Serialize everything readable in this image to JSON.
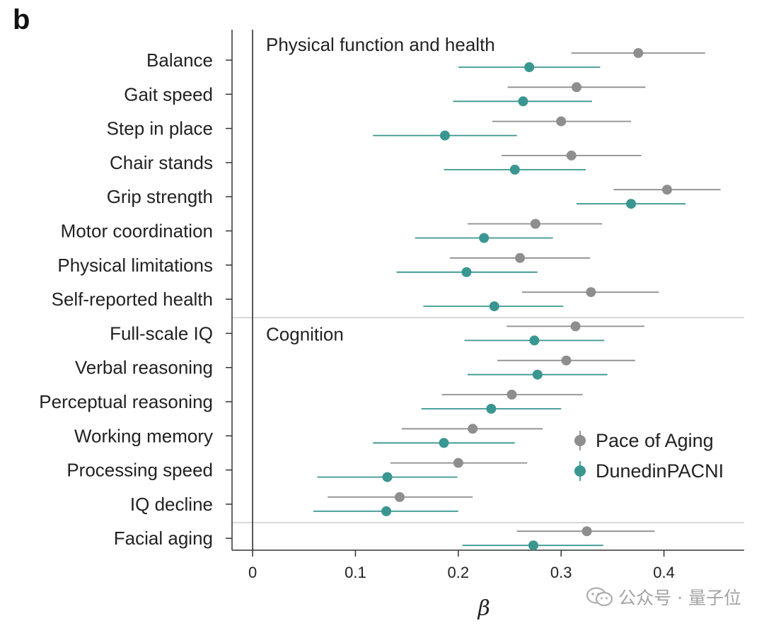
{
  "panel_label": "b",
  "watermark": {
    "text": "公众号 · 量子位",
    "icon": "wechat-icon"
  },
  "colors": {
    "pace_of_aging": "#8e8e8e",
    "dunedin_pacni": "#3a9690",
    "axis": "#333333",
    "separator": "#cccccc"
  },
  "chart_data": {
    "type": "forest",
    "xlabel": "β",
    "xlim": [
      -0.02,
      0.478
    ],
    "xticks": [
      0,
      0.1,
      0.2,
      0.3,
      0.4
    ],
    "xtick_labels": [
      "0",
      "0.1",
      "0.2",
      "0.3",
      "0.4"
    ],
    "sections": [
      {
        "name": "Physical function and health",
        "first_index": 0
      },
      {
        "name": "Cognition",
        "first_index": 8
      }
    ],
    "separators_after_index": [
      7,
      13
    ],
    "legend": [
      {
        "name": "Pace of Aging",
        "color_key": "pace_of_aging"
      },
      {
        "name": "DunedinPACNI",
        "color_key": "dunedin_pacni"
      }
    ],
    "categories": [
      "Balance",
      "Gait speed",
      "Step in place",
      "Chair stands",
      "Grip strength",
      "Motor coordination",
      "Physical limitations",
      "Self-reported health",
      "Full-scale IQ",
      "Verbal reasoning",
      "Perceptual reasoning",
      "Working memory",
      "Processing speed",
      "IQ decline",
      "Facial aging"
    ],
    "series": [
      {
        "name": "Pace of Aging",
        "estimates": [
          0.375,
          0.315,
          0.3,
          0.31,
          0.403,
          0.275,
          0.26,
          0.329,
          0.314,
          0.305,
          0.252,
          0.214,
          0.2,
          0.143,
          0.325
        ],
        "lower": [
          0.31,
          0.248,
          0.233,
          0.242,
          0.351,
          0.209,
          0.192,
          0.262,
          0.247,
          0.238,
          0.184,
          0.145,
          0.134,
          0.073,
          0.257
        ],
        "upper": [
          0.44,
          0.382,
          0.368,
          0.378,
          0.455,
          0.34,
          0.328,
          0.395,
          0.381,
          0.372,
          0.321,
          0.282,
          0.267,
          0.214,
          0.391
        ]
      },
      {
        "name": "DunedinPACNI",
        "estimates": [
          0.269,
          0.263,
          0.187,
          0.255,
          0.368,
          0.225,
          0.208,
          0.235,
          0.274,
          0.277,
          0.232,
          0.186,
          0.131,
          0.13,
          0.273
        ],
        "lower": [
          0.2,
          0.195,
          0.117,
          0.186,
          0.315,
          0.158,
          0.14,
          0.166,
          0.206,
          0.209,
          0.164,
          0.117,
          0.063,
          0.059,
          0.204
        ],
        "upper": [
          0.338,
          0.33,
          0.257,
          0.324,
          0.421,
          0.292,
          0.277,
          0.302,
          0.342,
          0.345,
          0.3,
          0.255,
          0.199,
          0.2,
          0.341
        ]
      }
    ]
  }
}
